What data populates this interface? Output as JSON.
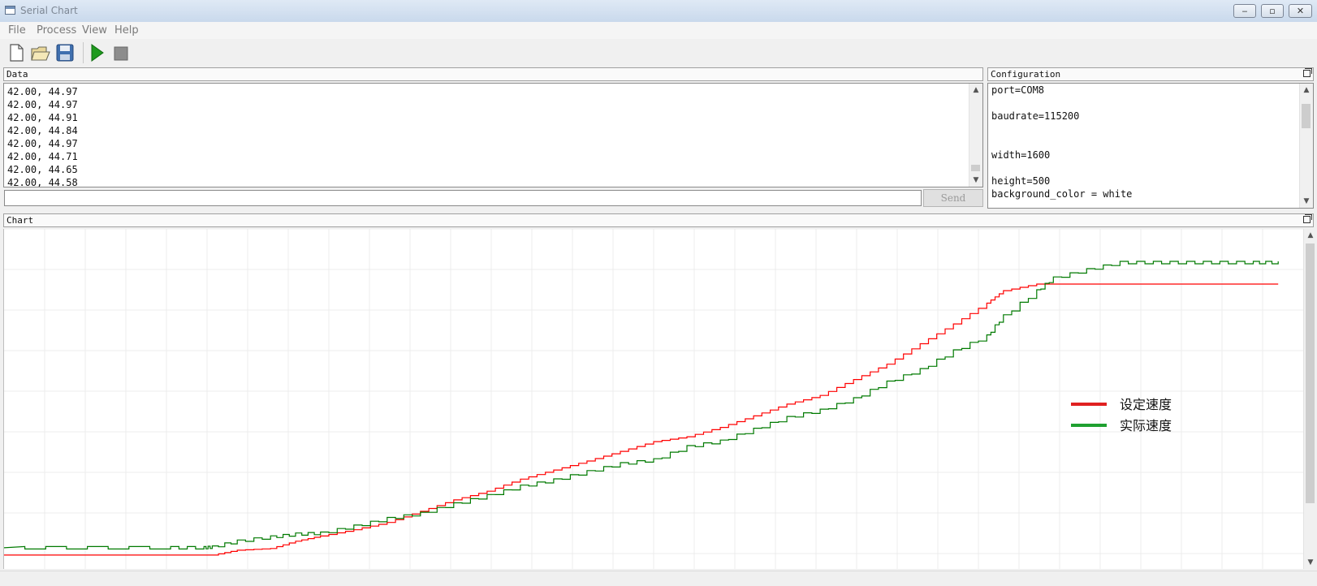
{
  "window": {
    "title": "Serial Chart",
    "minimize": "‒",
    "maximize": "▫",
    "close": "✕"
  },
  "menu": {
    "items": [
      "File",
      "Process",
      "View",
      "Help"
    ]
  },
  "toolbar": {
    "icons": [
      "new-file-icon",
      "open-folder-icon",
      "save-icon",
      "run-icon",
      "stop-icon"
    ]
  },
  "data_panel": {
    "title": "Data",
    "lines": [
      "42.00, 44.97",
      "42.00, 44.97",
      "42.00, 44.91",
      "42.00, 44.84",
      "42.00, 44.97",
      "42.00, 44.71",
      "42.00, 44.65",
      "42.00, 44.58"
    ],
    "input_value": "",
    "send_label": "Send"
  },
  "config_panel": {
    "title": "Configuration",
    "lines": [
      "port=COM8",
      "",
      "baudrate=115200",
      "",
      "",
      "width=1600",
      "",
      "height=500",
      "background_color = white"
    ]
  },
  "chart_panel": {
    "title": "Chart"
  },
  "chart_data": {
    "type": "line",
    "title": "",
    "xlabel": "",
    "ylabel": "",
    "grid": true,
    "legend_position": "right",
    "x": [
      0,
      100,
      200,
      240,
      250,
      280,
      320,
      350,
      380,
      420,
      460,
      500,
      540,
      580,
      620,
      660,
      700,
      740,
      780,
      820,
      860,
      900,
      940,
      980,
      1020,
      1060,
      1100,
      1140,
      1180,
      1200,
      1240,
      1260,
      1300,
      1340,
      1380,
      1420,
      1460,
      1500,
      1530
    ],
    "series": [
      {
        "name": "设定速度",
        "color": "#ff0000",
        "values": [
          0.0,
          0.0,
          0.0,
          0.0,
          0.0,
          1.4,
          1.9,
          4.0,
          5.5,
          7.3,
          9.4,
          12.6,
          15.9,
          18.4,
          21.9,
          24.5,
          27.1,
          29.9,
          32.7,
          34.1,
          36.8,
          40.1,
          43.5,
          46.0,
          50.6,
          55.0,
          60.9,
          66.6,
          72.6,
          76.2,
          78.1,
          78.1,
          78.1,
          78.1,
          78.1,
          78.1,
          78.1,
          78.1,
          78.1
        ]
      },
      {
        "name": "实际速度",
        "color": "#007a00",
        "values": [
          2.1,
          2.1,
          2.1,
          2.1,
          2.3,
          4.0,
          5.2,
          6.0,
          6.3,
          8.3,
          10.5,
          12.0,
          14.7,
          17.1,
          19.8,
          21.6,
          24.0,
          26.3,
          27.4,
          31.2,
          32.8,
          36.2,
          39.6,
          41.7,
          45.0,
          49.8,
          53.4,
          58.8,
          63.1,
          68.9,
          76.1,
          79.8,
          82.2,
          84.3,
          84.3,
          84.3,
          84.3,
          84.3,
          84.3
        ]
      }
    ],
    "xlim": [
      0,
      1560
    ],
    "ylim": [
      -4,
      94
    ]
  },
  "colors": {
    "window_bg": "#f0f0f0",
    "chart_bg": "#ffffff",
    "grid": "#ececec"
  }
}
